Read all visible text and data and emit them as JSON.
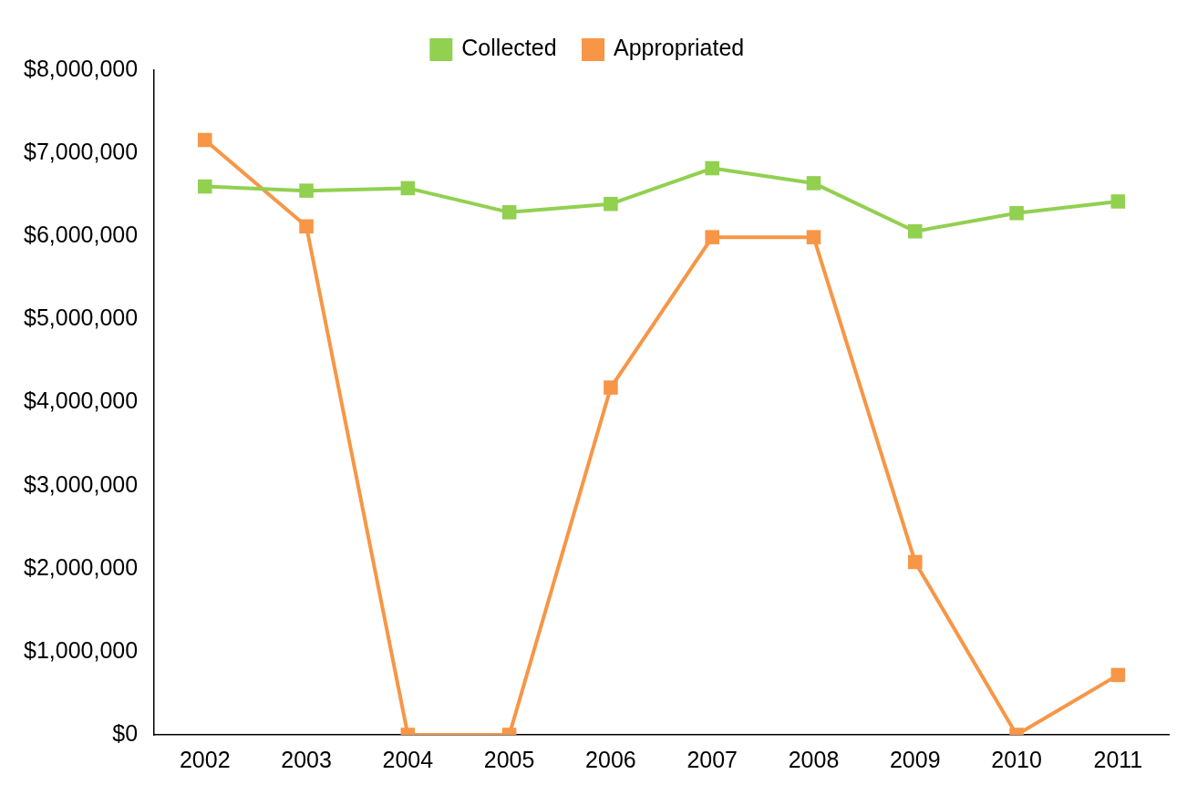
{
  "chart_data": {
    "type": "line",
    "categories": [
      "2002",
      "2003",
      "2004",
      "2005",
      "2006",
      "2007",
      "2008",
      "2009",
      "2010",
      "2011"
    ],
    "series": [
      {
        "name": "Collected",
        "color": "#92d050",
        "values": [
          6600000,
          6550000,
          6580000,
          6290000,
          6390000,
          6820000,
          6640000,
          6060000,
          6280000,
          6420000
        ]
      },
      {
        "name": "Appropriated",
        "color": "#f79646",
        "values": [
          7160000,
          6120000,
          0,
          0,
          4180000,
          5990000,
          5990000,
          2080000,
          0,
          720000
        ]
      }
    ],
    "ylim": [
      0,
      8000000
    ],
    "yticks": [
      {
        "value": 0,
        "label": "$0"
      },
      {
        "value": 1000000,
        "label": "$1,000,000"
      },
      {
        "value": 2000000,
        "label": "$2,000,000"
      },
      {
        "value": 3000000,
        "label": "$3,000,000"
      },
      {
        "value": 4000000,
        "label": "$4,000,000"
      },
      {
        "value": 5000000,
        "label": "$5,000,000"
      },
      {
        "value": 6000000,
        "label": "$6,000,000"
      },
      {
        "value": 7000000,
        "label": "$7,000,000"
      },
      {
        "value": 8000000,
        "label": "$8,000,000"
      }
    ],
    "grid": false,
    "legend": "top",
    "marker": "square",
    "line_style": "solid"
  }
}
